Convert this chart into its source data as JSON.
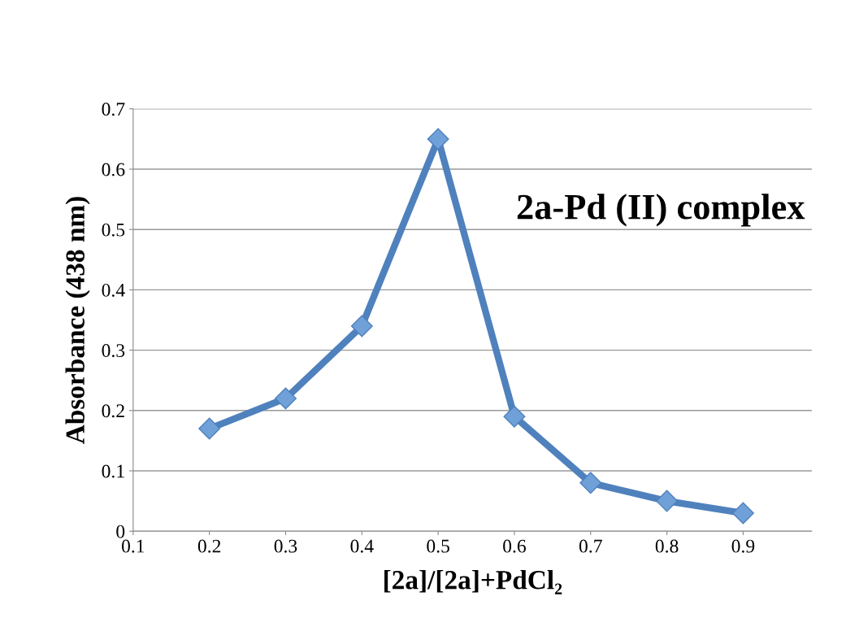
{
  "chart_data": {
    "type": "line",
    "xlabel": "[2a]/[2a]+PdCl₂",
    "ylabel": "Absorbance (438 nm)",
    "annotations": [
      "2a-Pd (II) complex"
    ],
    "x": [
      0.2,
      0.3,
      0.4,
      0.5,
      0.6,
      0.7,
      0.8,
      0.9
    ],
    "series": [
      {
        "color": "#4f81bd",
        "values": [
          0.17,
          0.22,
          0.34,
          0.65,
          0.19,
          0.08,
          0.05,
          0.03
        ]
      }
    ],
    "xlim": [
      0.1,
      0.99
    ],
    "xticks": [
      0.1,
      0.2,
      0.3,
      0.4,
      0.5,
      0.6,
      0.7,
      0.8,
      0.9
    ],
    "ylim": [
      0,
      0.7
    ],
    "yticks": [
      0,
      0.1,
      0.2,
      0.3,
      0.4,
      0.5,
      0.6,
      0.7
    ],
    "grid": "y",
    "marker": "diamond",
    "line_style": "solid",
    "legend": false
  }
}
